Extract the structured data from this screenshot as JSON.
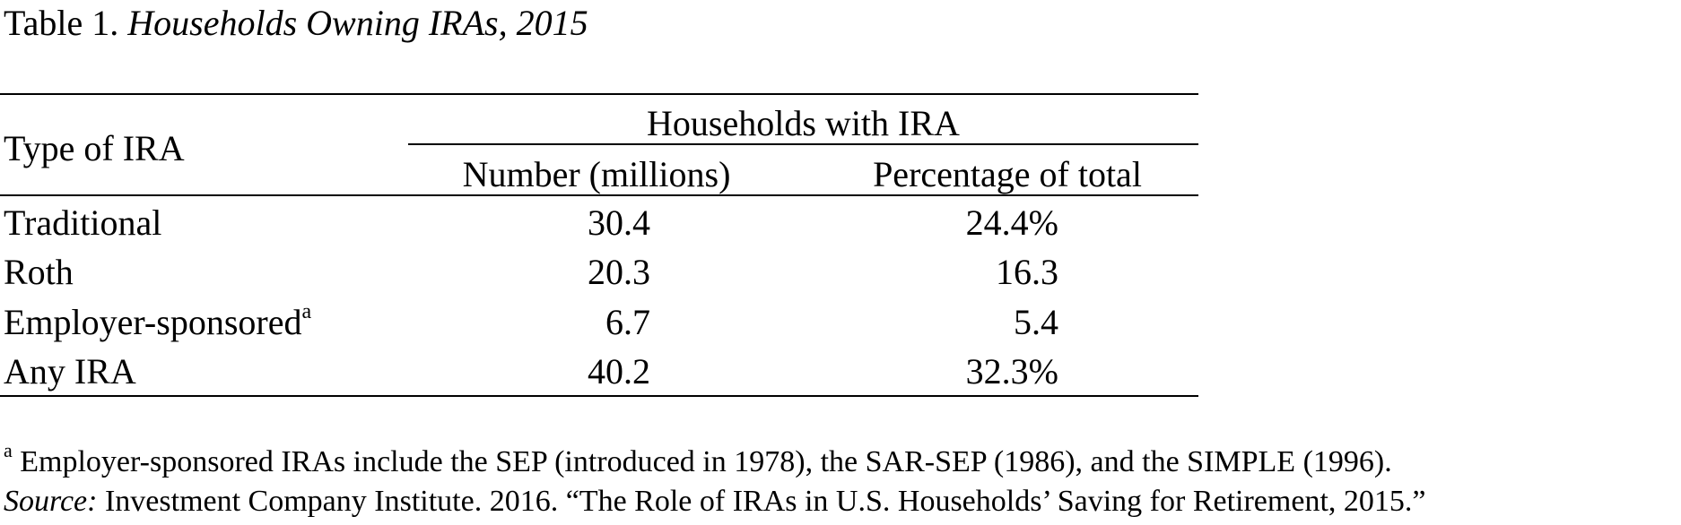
{
  "title": {
    "prefix": "Table 1.",
    "italic_text": "Households Owning IRAs, 2015"
  },
  "table": {
    "row_header": "Type of IRA",
    "spanning_header": "Households with IRA",
    "columns": [
      "Number (millions)",
      "Percentage of total"
    ],
    "rows": [
      {
        "label": "Traditional",
        "footnote_mark": "",
        "number": "30.4",
        "percentage": "24.4%"
      },
      {
        "label": "Roth",
        "footnote_mark": "",
        "number": "20.3",
        "percentage": "16.3"
      },
      {
        "label": "Employer-sponsored",
        "footnote_mark": "a",
        "number": "6.7",
        "percentage": "5.4"
      },
      {
        "label": "Any IRA",
        "footnote_mark": "",
        "number": "40.2",
        "percentage": "32.3%"
      }
    ]
  },
  "footnotes": {
    "note_mark": "a",
    "note_text": "Employer-sponsored IRAs include the SEP (introduced in 1978), the SAR-SEP (1986), and the SIMPLE (1996).",
    "source_label": "Source:",
    "source_text": "Investment Company Institute. 2016. “The Role of IRAs in U.S. Households’ Saving for Retirement, 2015.”"
  }
}
